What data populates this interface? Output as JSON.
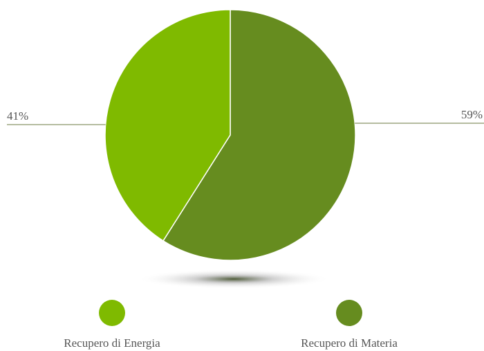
{
  "chart_data": {
    "type": "pie",
    "categories": [
      "Recupero di Materia",
      "Recupero di Energia"
    ],
    "values": [
      59,
      41
    ],
    "value_labels": [
      "59%",
      "41%"
    ],
    "colors": [
      "#668c1f",
      "#7fba00"
    ]
  }
}
